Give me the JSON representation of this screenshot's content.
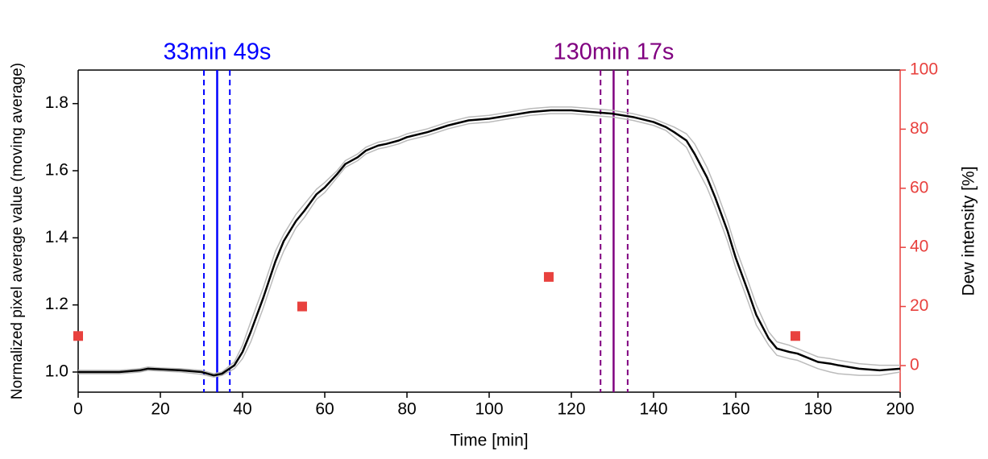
{
  "chart_data": {
    "type": "line",
    "x_label": "Time [min]",
    "y_label": "Normalized pixel average value (moving average)",
    "y2_label": "Dew intensity [%]",
    "xlim": [
      0,
      200
    ],
    "xticks": [
      0,
      20,
      40,
      60,
      80,
      100,
      120,
      140,
      160,
      180,
      200
    ],
    "ylim": [
      0.94,
      1.9
    ],
    "yticks": [
      {
        "value": 1.0,
        "label": "1.0"
      },
      {
        "value": 1.2,
        "label": "1.2"
      },
      {
        "value": 1.4,
        "label": "1.4"
      },
      {
        "value": 1.6,
        "label": "1.6"
      },
      {
        "value": 1.8,
        "label": "1.8"
      }
    ],
    "y2lim": [
      -9,
      100
    ],
    "y2ticks": [
      0,
      20,
      40,
      60,
      80,
      100
    ],
    "y2_color": "#e8413e",
    "x": [
      0,
      5,
      10,
      15,
      17,
      20,
      25,
      30,
      33,
      35,
      38,
      40,
      42,
      45,
      48,
      50,
      53,
      55,
      58,
      60,
      63,
      65,
      68,
      70,
      73,
      75,
      78,
      80,
      85,
      90,
      95,
      100,
      105,
      110,
      115,
      120,
      125,
      130,
      135,
      140,
      143,
      145,
      148,
      150,
      153,
      155,
      158,
      160,
      163,
      165,
      168,
      170,
      173,
      175,
      178,
      180,
      183,
      185,
      190,
      195,
      200
    ],
    "series": [
      {
        "color": "#bbbbbb",
        "values": [
          1.005,
          1.005,
          1.005,
          1.01,
          1.015,
          1.012,
          1.01,
          1.005,
          0.995,
          1.0,
          1.03,
          1.08,
          1.15,
          1.25,
          1.36,
          1.41,
          1.47,
          1.5,
          1.545,
          1.565,
          1.6,
          1.63,
          1.65,
          1.67,
          1.685,
          1.69,
          1.7,
          1.71,
          1.725,
          1.745,
          1.76,
          1.765,
          1.775,
          1.785,
          1.79,
          1.79,
          1.785,
          1.78,
          1.77,
          1.755,
          1.74,
          1.73,
          1.71,
          1.68,
          1.61,
          1.55,
          1.45,
          1.37,
          1.27,
          1.2,
          1.12,
          1.09,
          1.08,
          1.07,
          1.055,
          1.045,
          1.04,
          1.035,
          1.025,
          1.02,
          1.02
        ]
      },
      {
        "color": "#bbbbbb",
        "values": [
          0.995,
          0.995,
          0.995,
          1.0,
          1.005,
          1.003,
          1.0,
          0.993,
          0.985,
          0.99,
          1.01,
          1.04,
          1.09,
          1.19,
          1.3,
          1.36,
          1.43,
          1.46,
          1.515,
          1.535,
          1.58,
          1.61,
          1.63,
          1.65,
          1.665,
          1.67,
          1.68,
          1.69,
          1.705,
          1.725,
          1.74,
          1.745,
          1.755,
          1.765,
          1.77,
          1.77,
          1.765,
          1.76,
          1.75,
          1.735,
          1.72,
          1.7,
          1.67,
          1.62,
          1.55,
          1.49,
          1.39,
          1.31,
          1.21,
          1.14,
          1.08,
          1.05,
          1.04,
          1.035,
          1.02,
          1.01,
          1.0,
          0.995,
          0.99,
          0.99,
          1.0
        ]
      },
      {
        "color": "#000000",
        "values": [
          1.0,
          1.0,
          1.0,
          1.005,
          1.01,
          1.008,
          1.005,
          1.0,
          0.99,
          0.995,
          1.02,
          1.06,
          1.12,
          1.22,
          1.33,
          1.39,
          1.45,
          1.48,
          1.53,
          1.55,
          1.59,
          1.62,
          1.64,
          1.66,
          1.675,
          1.68,
          1.69,
          1.7,
          1.715,
          1.735,
          1.75,
          1.755,
          1.765,
          1.775,
          1.78,
          1.78,
          1.775,
          1.77,
          1.76,
          1.745,
          1.73,
          1.715,
          1.69,
          1.65,
          1.58,
          1.52,
          1.42,
          1.34,
          1.24,
          1.17,
          1.1,
          1.07,
          1.06,
          1.055,
          1.04,
          1.03,
          1.025,
          1.02,
          1.01,
          1.005,
          1.01
        ]
      }
    ],
    "dew": {
      "axis": "y2",
      "type": "scatter",
      "color": "#e8413e",
      "x": [
        0,
        54.5,
        114.5,
        174.5
      ],
      "values": [
        10,
        20,
        30,
        10
      ]
    },
    "vlines": [
      {
        "label": "33min 49s",
        "color": "#0000ff",
        "x": 33.82,
        "dashed_x": [
          30.6,
          36.9
        ]
      },
      {
        "label": "130min 17s",
        "color": "#800080",
        "x": 130.28,
        "dashed_x": [
          127.1,
          133.7
        ]
      }
    ]
  }
}
